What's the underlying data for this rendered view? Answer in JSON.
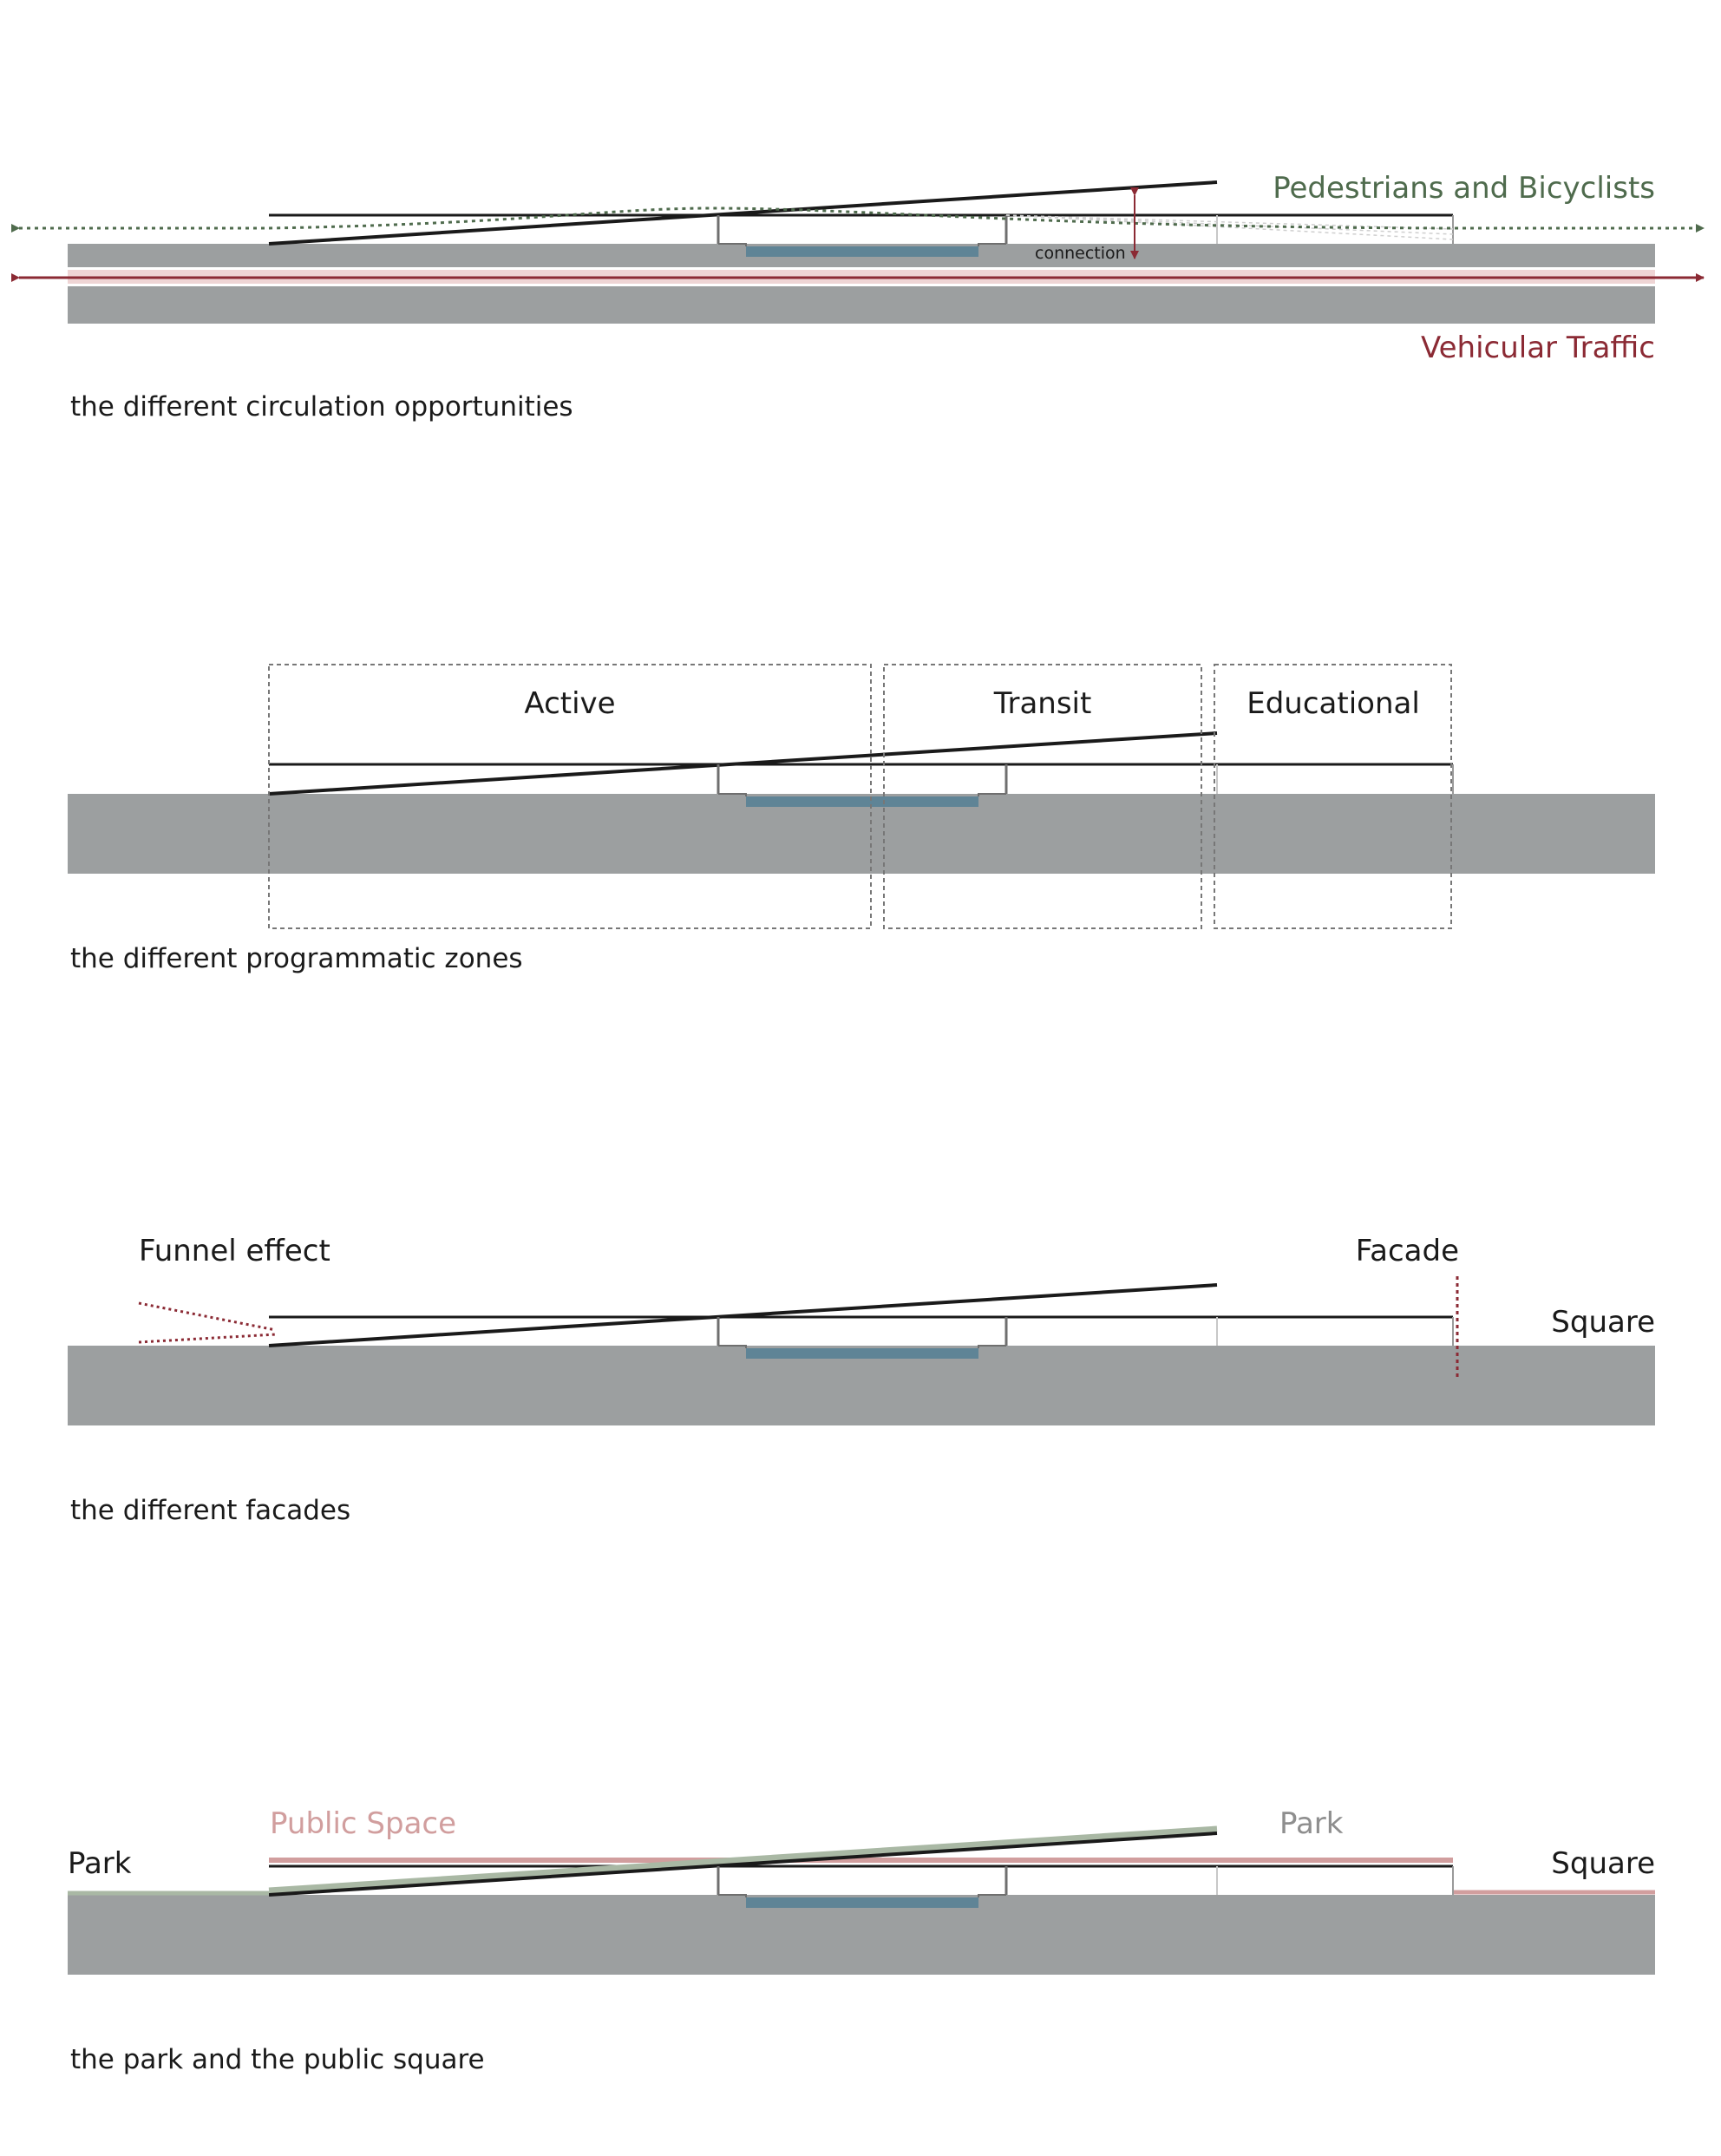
{
  "colors": {
    "ground": "#9c9fa0",
    "water": "#5f8496",
    "line": "#1a1a1a",
    "pedestrian": "#4f6b4d",
    "vehicular": "#8b2a34",
    "zone_border": "#777777",
    "funnel": "#8b2a34",
    "public_space": "#d19e9e",
    "park": "#a9b8a4",
    "park_label": "#8e8e8e"
  },
  "panels": [
    {
      "id": "circulation",
      "caption": "the different circulation opportunities",
      "labels": {
        "pedestrians": "Pedestrians and Bicyclists",
        "vehicular": "Vehicular Traffic",
        "connection": "connection"
      }
    },
    {
      "id": "zones",
      "caption": "the different programmatic zones",
      "zones": [
        "Active",
        "Transit",
        "Educational"
      ]
    },
    {
      "id": "facades",
      "caption": "the different facades",
      "labels": {
        "funnel": "Funnel effect",
        "facade": "Facade",
        "square": "Square"
      }
    },
    {
      "id": "park",
      "caption": "the park and the public square",
      "labels": {
        "public_space": "Public Space",
        "park_left": "Park",
        "park_right": "Park",
        "square": "Square"
      }
    }
  ]
}
